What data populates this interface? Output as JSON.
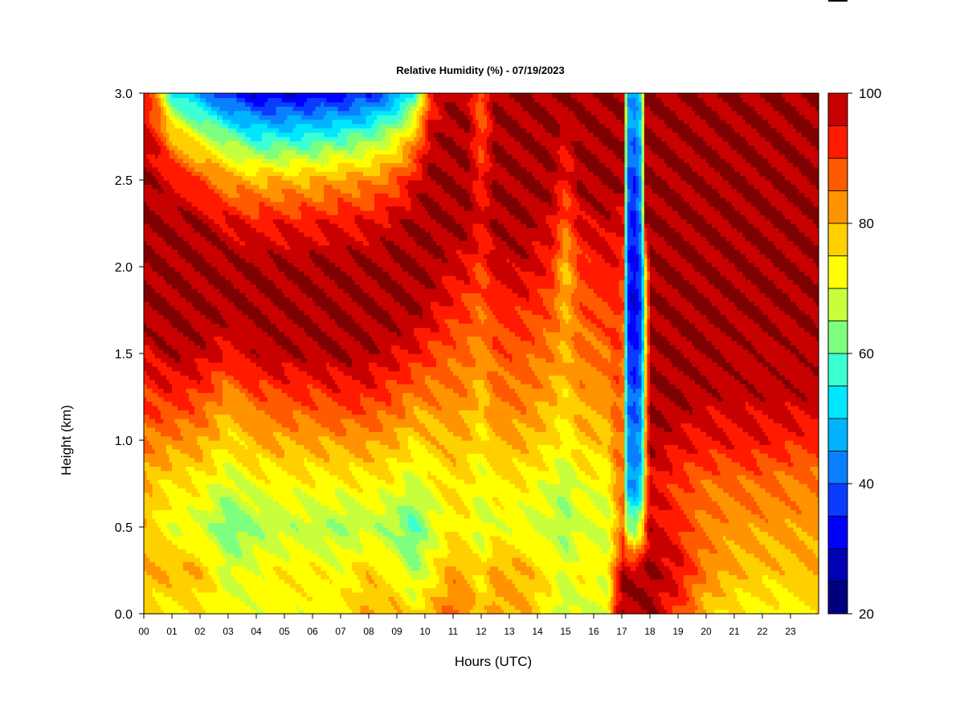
{
  "chart_data": {
    "type": "heatmap",
    "title": "Relative Humidity (%) - 07/19/2023",
    "xlabel": "Hours (UTC)",
    "ylabel": "Height (km)",
    "x_ticks": [
      "00",
      "01",
      "02",
      "03",
      "04",
      "05",
      "06",
      "07",
      "08",
      "09",
      "10",
      "11",
      "12",
      "13",
      "14",
      "15",
      "16",
      "17",
      "18",
      "19",
      "20",
      "21",
      "22",
      "23"
    ],
    "y_ticks": [
      "0.0",
      "0.5",
      "1.0",
      "1.5",
      "2.0",
      "2.5",
      "3.0"
    ],
    "xlim": [
      0,
      24
    ],
    "ylim": [
      0,
      3
    ],
    "colorbar": {
      "ticks": [
        "20",
        "40",
        "60",
        "80",
        "100"
      ],
      "range": [
        20,
        100
      ],
      "levels": [
        20,
        25,
        30,
        35,
        40,
        45,
        50,
        55,
        60,
        65,
        70,
        75,
        80,
        85,
        90,
        95,
        100
      ],
      "colors": [
        "#00007f",
        "#0000b4",
        "#0000ff",
        "#0a3cff",
        "#0a7fff",
        "#00b4ff",
        "#00e6ff",
        "#3cffd2",
        "#7fff7f",
        "#c8ff3c",
        "#ffff00",
        "#ffd000",
        "#ff9400",
        "#ff5a00",
        "#ff1a00",
        "#c80000",
        "#7f0000"
      ]
    },
    "profile_heights_km": [
      0.0,
      0.25,
      0.5,
      0.75,
      1.0,
      1.25,
      1.5,
      1.75,
      2.0,
      2.25,
      2.5,
      2.75,
      3.0
    ],
    "profiles": [
      {
        "hour": 0.0,
        "rh": [
          75,
          80,
          78,
          80,
          85,
          90,
          95,
          100,
          100,
          100,
          100,
          97,
          92
        ]
      },
      {
        "hour": 0.5,
        "rh": [
          74,
          80,
          76,
          77,
          85,
          92,
          98,
          100,
          100,
          100,
          98,
          93,
          82
        ]
      },
      {
        "hour": 1.0,
        "rh": [
          73,
          80,
          70,
          75,
          83,
          92,
          99,
          100,
          100,
          100,
          95,
          80,
          55
        ]
      },
      {
        "hour": 2.0,
        "rh": [
          74,
          80,
          70,
          74,
          82,
          90,
          98,
          100,
          100,
          100,
          90,
          70,
          45
        ]
      },
      {
        "hour": 3.0,
        "rh": [
          72,
          68,
          60,
          68,
          75,
          82,
          94,
          100,
          100,
          96,
          82,
          62,
          35
        ]
      },
      {
        "hour": 4.0,
        "rh": [
          72,
          72,
          65,
          72,
          80,
          88,
          98,
          100,
          100,
          94,
          80,
          55,
          30
        ]
      },
      {
        "hour": 5.0,
        "rh": [
          72,
          74,
          67,
          73,
          81,
          90,
          99,
          100,
          100,
          94,
          80,
          55,
          30
        ]
      },
      {
        "hour": 6.0,
        "rh": [
          72,
          74,
          67,
          73,
          81,
          90,
          99,
          100,
          100,
          94,
          80,
          56,
          31
        ]
      },
      {
        "hour": 7.0,
        "rh": [
          73,
          72,
          65,
          73,
          82,
          92,
          100,
          100,
          100,
          95,
          82,
          58,
          32
        ]
      },
      {
        "hour": 8.0,
        "rh": [
          80,
          78,
          68,
          74,
          82,
          92,
          99,
          100,
          100,
          95,
          83,
          62,
          35
        ]
      },
      {
        "hour": 9.0,
        "rh": [
          80,
          72,
          64,
          72,
          80,
          88,
          96,
          100,
          100,
          98,
          88,
          70,
          45
        ]
      },
      {
        "hour": 9.6,
        "rh": [
          75,
          65,
          58,
          68,
          76,
          84,
          94,
          100,
          100,
          100,
          95,
          80,
          55
        ]
      },
      {
        "hour": 10.2,
        "rh": [
          80,
          72,
          68,
          72,
          78,
          84,
          90,
          97,
          100,
          100,
          100,
          98,
          92
        ]
      },
      {
        "hour": 11.0,
        "rh": [
          86,
          82,
          74,
          76,
          80,
          84,
          87,
          92,
          96,
          100,
          100,
          100,
          100
        ]
      },
      {
        "hour": 11.5,
        "rh": [
          84,
          80,
          73,
          75,
          79,
          83,
          86,
          90,
          95,
          100,
          100,
          100,
          98
        ]
      },
      {
        "hour": 12.0,
        "rh": [
          76,
          74,
          68,
          70,
          74,
          78,
          82,
          86,
          90,
          94,
          92,
          88,
          86
        ]
      },
      {
        "hour": 12.5,
        "rh": [
          82,
          82,
          72,
          74,
          80,
          85,
          88,
          92,
          96,
          100,
          100,
          100,
          100
        ]
      },
      {
        "hour": 13.5,
        "rh": [
          80,
          80,
          70,
          74,
          80,
          85,
          88,
          92,
          98,
          100,
          100,
          100,
          100
        ]
      },
      {
        "hour": 14.5,
        "rh": [
          72,
          74,
          68,
          70,
          76,
          80,
          84,
          88,
          92,
          96,
          100,
          100,
          100
        ]
      },
      {
        "hour": 15.0,
        "rh": [
          66,
          68,
          64,
          66,
          72,
          76,
          80,
          80,
          78,
          86,
          92,
          96,
          100
        ]
      },
      {
        "hour": 15.5,
        "rh": [
          70,
          74,
          70,
          72,
          78,
          82,
          85,
          88,
          90,
          96,
          100,
          100,
          100
        ]
      },
      {
        "hour": 16.5,
        "rh": [
          68,
          72,
          68,
          72,
          78,
          82,
          86,
          90,
          94,
          98,
          100,
          100,
          100
        ]
      },
      {
        "hour": 16.8,
        "rh": [
          95,
          88,
          78,
          82,
          86,
          88,
          90,
          92,
          94,
          96,
          100,
          100,
          100
        ]
      },
      {
        "hour": 17.05,
        "rh": [
          100,
          100,
          86,
          84,
          84,
          84,
          86,
          88,
          90,
          94,
          100,
          100,
          100
        ]
      },
      {
        "hour": 17.2,
        "rh": [
          100,
          100,
          65,
          46,
          44,
          42,
          38,
          34,
          36,
          38,
          40,
          44,
          48
        ]
      },
      {
        "hour": 17.45,
        "rh": [
          100,
          98,
          62,
          44,
          42,
          38,
          34,
          30,
          32,
          34,
          36,
          42,
          46
        ]
      },
      {
        "hour": 17.7,
        "rh": [
          100,
          100,
          72,
          50,
          46,
          44,
          40,
          38,
          40,
          44,
          46,
          50,
          52
        ]
      },
      {
        "hour": 17.85,
        "rh": [
          100,
          100,
          88,
          80,
          82,
          80,
          76,
          72,
          76,
          100,
          100,
          100,
          100
        ]
      },
      {
        "hour": 18.0,
        "rh": [
          100,
          100,
          98,
          96,
          100,
          100,
          100,
          100,
          100,
          100,
          100,
          100,
          100
        ]
      },
      {
        "hour": 19.0,
        "rh": [
          90,
          96,
          92,
          90,
          96,
          100,
          100,
          100,
          100,
          100,
          100,
          100,
          100
        ]
      },
      {
        "hour": 20.0,
        "rh": [
          78,
          84,
          84,
          86,
          94,
          98,
          100,
          100,
          100,
          100,
          100,
          100,
          100
        ]
      },
      {
        "hour": 21.0,
        "rh": [
          74,
          80,
          82,
          86,
          94,
          98,
          98,
          100,
          100,
          100,
          100,
          100,
          100
        ]
      },
      {
        "hour": 22.0,
        "rh": [
          72,
          78,
          82,
          86,
          94,
          98,
          98,
          100,
          100,
          100,
          100,
          100,
          100
        ]
      },
      {
        "hour": 23.0,
        "rh": [
          72,
          78,
          82,
          84,
          92,
          98,
          98,
          100,
          100,
          100,
          100,
          100,
          100
        ]
      },
      {
        "hour": 23.8,
        "rh": [
          74,
          80,
          82,
          84,
          92,
          98,
          98,
          100,
          100,
          100,
          100,
          100,
          100
        ]
      }
    ]
  }
}
